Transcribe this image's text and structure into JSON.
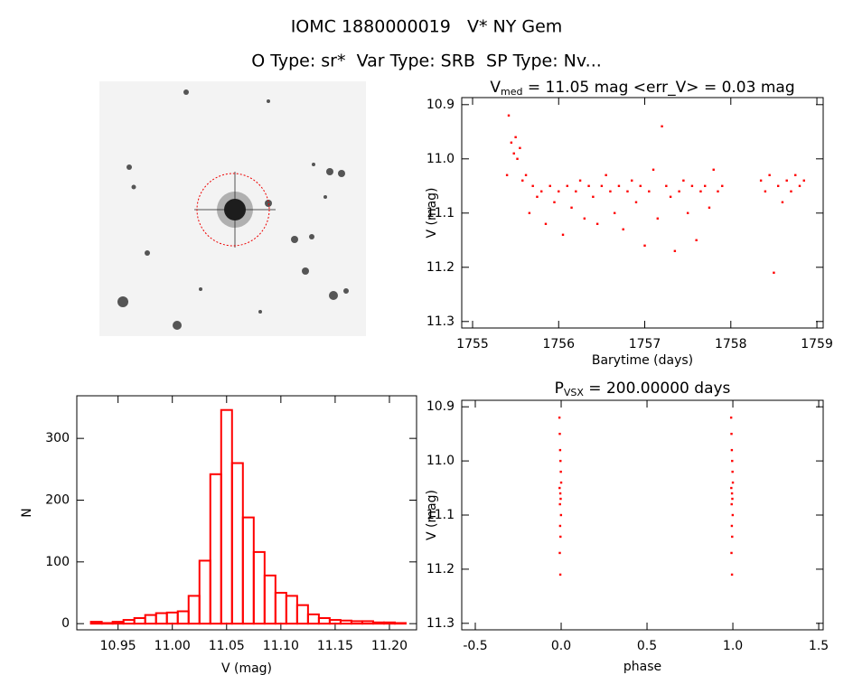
{
  "header": {
    "title": "IOMC 1880000019   V* NY Gem",
    "subtitle": "O Type: sr*  Var Type: SRB  SP Type: Nv..."
  },
  "chart_data": [
    {
      "type": "scatter",
      "title_main": "V",
      "title_sub": "med",
      "title_rest": " = 11.05 mag <err_V> = 0.03 mag",
      "x_label": "Barytime (days)",
      "y_label": "V (mag)",
      "color": "#ff0000",
      "invert_y": true,
      "xlim": [
        1754.874,
        1759.073
      ],
      "xticks": [
        1755,
        1756,
        1757,
        1758,
        1759
      ],
      "ylim": [
        10.887,
        11.312
      ],
      "yticks": [
        10.9,
        {
          "value": 11.0,
          "label": "11.0"
        },
        11.1,
        11.2,
        11.3
      ],
      "x": [
        1755.4,
        1755.42,
        1755.45,
        1755.48,
        1755.5,
        1755.52,
        1755.55,
        1755.58,
        1755.62,
        1755.66,
        1755.7,
        1755.75,
        1755.8,
        1755.85,
        1755.9,
        1755.95,
        1756.0,
        1756.05,
        1756.1,
        1756.15,
        1756.2,
        1756.25,
        1756.3,
        1756.35,
        1756.4,
        1756.45,
        1756.5,
        1756.55,
        1756.6,
        1756.65,
        1756.7,
        1756.75,
        1756.8,
        1756.85,
        1756.9,
        1756.95,
        1757.0,
        1757.05,
        1757.1,
        1757.15,
        1757.2,
        1757.25,
        1757.3,
        1757.35,
        1757.4,
        1757.45,
        1757.5,
        1757.55,
        1757.6,
        1757.65,
        1757.7,
        1757.75,
        1757.8,
        1757.85,
        1757.9,
        1758.35,
        1758.4,
        1758.45,
        1758.5,
        1758.55,
        1758.6,
        1758.65,
        1758.7,
        1758.75,
        1758.8,
        1758.85
      ],
      "values": [
        11.03,
        10.92,
        10.97,
        10.99,
        10.96,
        11.0,
        10.98,
        11.04,
        11.03,
        11.1,
        11.05,
        11.07,
        11.06,
        11.12,
        11.05,
        11.08,
        11.06,
        11.14,
        11.05,
        11.09,
        11.06,
        11.04,
        11.11,
        11.05,
        11.07,
        11.12,
        11.05,
        11.03,
        11.06,
        11.1,
        11.05,
        11.13,
        11.06,
        11.04,
        11.08,
        11.05,
        11.16,
        11.06,
        11.02,
        11.11,
        10.94,
        11.05,
        11.07,
        11.17,
        11.06,
        11.04,
        11.1,
        11.05,
        11.15,
        11.06,
        11.05,
        11.09,
        11.02,
        11.06,
        11.05,
        11.04,
        11.06,
        11.03,
        11.21,
        11.05,
        11.08,
        11.04,
        11.06,
        11.03,
        11.05,
        11.04
      ]
    },
    {
      "type": "histogram",
      "x_label": "V (mag)",
      "y_label": "N",
      "color": "#ff0000",
      "xlim": [
        10.912,
        11.225
      ],
      "xticks": [
        10.95,
        {
          "value": 11.0,
          "label": "11.00"
        },
        11.05,
        {
          "value": 11.1,
          "label": "11.10"
        },
        11.15,
        {
          "value": 11.2,
          "label": "11.20"
        }
      ],
      "ylim": [
        -10,
        369
      ],
      "yticks": [
        0,
        100,
        200,
        300
      ],
      "bins": [
        10.925,
        10.935,
        10.945,
        10.955,
        10.965,
        10.975,
        10.985,
        10.995,
        11.005,
        11.015,
        11.025,
        11.035,
        11.045,
        11.055,
        11.065,
        11.075,
        11.085,
        11.095,
        11.105,
        11.115,
        11.125,
        11.135,
        11.145,
        11.155,
        11.165,
        11.175,
        11.185,
        11.195,
        11.205,
        11.215
      ],
      "values": [
        3,
        1,
        3,
        6,
        9,
        14,
        17,
        18,
        20,
        45,
        102,
        242,
        346,
        260,
        172,
        116,
        78,
        50,
        45,
        30,
        15,
        9,
        6,
        5,
        4,
        4,
        2,
        2,
        1
      ]
    },
    {
      "type": "scatter",
      "title_main": "P",
      "title_sub": "VSX",
      "title_rest": " = 200.00000 days",
      "x_label": "phase",
      "y_label": "V (mag)",
      "color": "#ff0000",
      "invert_y": true,
      "xlim": [
        -0.579,
        1.526
      ],
      "xticks": [
        -0.5,
        {
          "value": 0.0,
          "label": "0.0"
        },
        0.5,
        {
          "value": 1.0,
          "label": "1.0"
        },
        1.5
      ],
      "ylim": [
        10.888,
        11.312
      ],
      "yticks": [
        10.9,
        {
          "value": 11.0,
          "label": "11.0"
        },
        11.1,
        11.2,
        11.3
      ],
      "x": [
        -0.01,
        -0.008,
        -0.006,
        -0.004,
        -0.002,
        0.0,
        -0.009,
        -0.005,
        -0.003,
        -0.007,
        -0.001,
        -0.006,
        -0.004,
        -0.008,
        -0.005,
        0.99,
        0.992,
        0.994,
        0.996,
        0.998,
        1.0,
        0.991,
        0.995,
        0.997,
        0.993,
        0.999,
        0.994,
        0.996,
        0.992,
        0.995
      ],
      "values": [
        10.92,
        10.95,
        10.98,
        11.0,
        11.02,
        11.04,
        11.05,
        11.06,
        11.07,
        11.08,
        11.1,
        11.12,
        11.14,
        11.17,
        11.21,
        10.92,
        10.95,
        10.98,
        11.0,
        11.02,
        11.04,
        11.05,
        11.06,
        11.07,
        11.08,
        11.1,
        11.12,
        11.14,
        11.17,
        11.21
      ]
    }
  ]
}
